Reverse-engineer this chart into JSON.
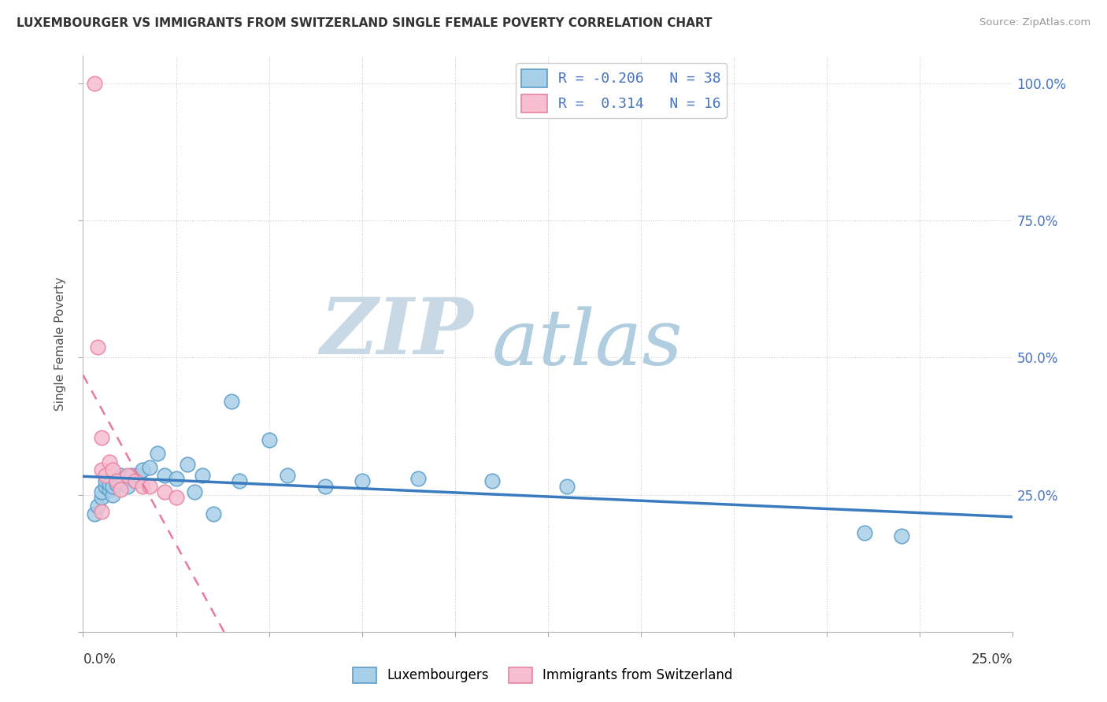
{
  "title": "LUXEMBOURGER VS IMMIGRANTS FROM SWITZERLAND SINGLE FEMALE POVERTY CORRELATION CHART",
  "source": "Source: ZipAtlas.com",
  "ylabel": "Single Female Poverty",
  "xlim": [
    0.0,
    0.25
  ],
  "ylim": [
    0.0,
    1.05
  ],
  "blue_scatter_color": "#a8cfe8",
  "blue_edge_color": "#5b9dc9",
  "pink_scatter_color": "#f7bdd0",
  "pink_edge_color": "#e8859f",
  "blue_line_color": "#3a7abf",
  "pink_line_color": "#e87a9a",
  "right_label_color": "#4472c4",
  "watermark_zip_color": "#d0dce8",
  "watermark_atlas_color": "#b8d4e8",
  "lux_x": [
    0.003,
    0.004,
    0.005,
    0.005,
    0.006,
    0.006,
    0.007,
    0.007,
    0.008,
    0.008,
    0.009,
    0.01,
    0.01,
    0.011,
    0.012,
    0.013,
    0.014,
    0.015,
    0.016,
    0.018,
    0.02,
    0.022,
    0.025,
    0.028,
    0.03,
    0.032,
    0.035,
    0.04,
    0.042,
    0.05,
    0.055,
    0.065,
    0.075,
    0.09,
    0.11,
    0.13,
    0.21,
    0.22
  ],
  "lux_y": [
    0.215,
    0.23,
    0.245,
    0.255,
    0.265,
    0.275,
    0.26,
    0.27,
    0.25,
    0.265,
    0.27,
    0.275,
    0.285,
    0.28,
    0.265,
    0.285,
    0.275,
    0.285,
    0.295,
    0.3,
    0.325,
    0.285,
    0.28,
    0.305,
    0.255,
    0.285,
    0.215,
    0.42,
    0.275,
    0.35,
    0.285,
    0.265,
    0.275,
    0.28,
    0.275,
    0.265,
    0.18,
    0.175
  ],
  "swiss_x": [
    0.003,
    0.004,
    0.005,
    0.005,
    0.005,
    0.006,
    0.007,
    0.008,
    0.009,
    0.01,
    0.012,
    0.014,
    0.016,
    0.018,
    0.022,
    0.025
  ],
  "swiss_y": [
    1.0,
    0.52,
    0.355,
    0.295,
    0.22,
    0.285,
    0.31,
    0.295,
    0.275,
    0.26,
    0.285,
    0.275,
    0.265,
    0.265,
    0.255,
    0.245
  ],
  "blue_line_x0": 0.0,
  "blue_line_x1": 0.25,
  "pink_line_x0": 0.0,
  "pink_line_x1": 0.25,
  "xticks": [
    0.0,
    0.025,
    0.05,
    0.075,
    0.1,
    0.125,
    0.15,
    0.175,
    0.2,
    0.225,
    0.25
  ],
  "yticks": [
    0.0,
    0.25,
    0.5,
    0.75,
    1.0
  ],
  "right_labels": [
    "",
    "25.0%",
    "50.0%",
    "75.0%",
    "100.0%"
  ]
}
